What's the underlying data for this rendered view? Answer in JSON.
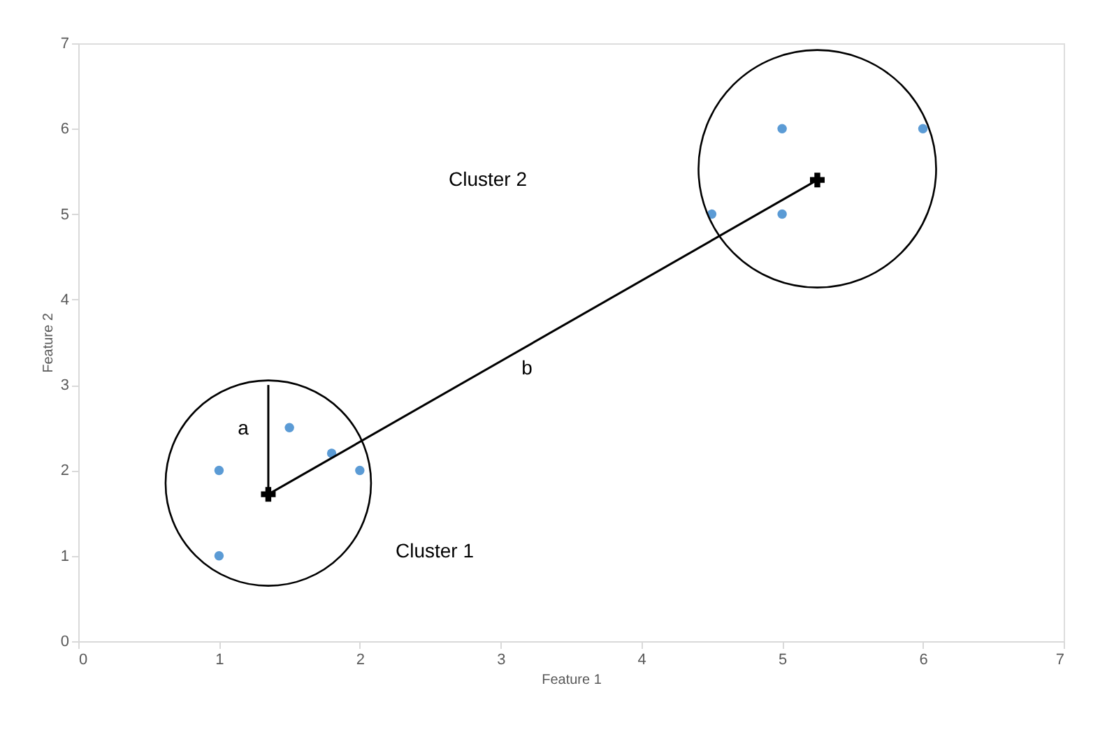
{
  "chart_data": {
    "type": "scatter",
    "xlabel": "Feature 1",
    "ylabel": "Feature 2",
    "xlim": [
      0,
      7
    ],
    "ylim": [
      0,
      7
    ],
    "xticks": [
      0,
      1,
      2,
      3,
      4,
      5,
      6,
      7
    ],
    "yticks": [
      0,
      1,
      2,
      3,
      4,
      5,
      6,
      7
    ],
    "grid": false,
    "series": [
      {
        "marker": "circle",
        "color": "#5b9bd5",
        "x": [
          1,
          1,
          1.5,
          1.8,
          2,
          4.5,
          5,
          5,
          6
        ],
        "values": [
          2,
          1,
          2.5,
          2.2,
          2,
          5,
          6,
          5,
          6
        ]
      },
      {
        "type": "line",
        "color": "#000000",
        "x": [
          1.35,
          1.35
        ],
        "values": [
          1.72,
          3.0
        ]
      },
      {
        "type": "line",
        "color": "#000000",
        "x": [
          1.35,
          5.25
        ],
        "values": [
          1.72,
          5.4
        ]
      },
      {
        "marker": "cross",
        "color": "#000000",
        "x": [
          1.35,
          5.25
        ],
        "values": [
          1.72,
          5.4
        ]
      }
    ],
    "annotations": [
      "a",
      "b",
      "Cluster 2",
      "Cluster 1"
    ]
  }
}
